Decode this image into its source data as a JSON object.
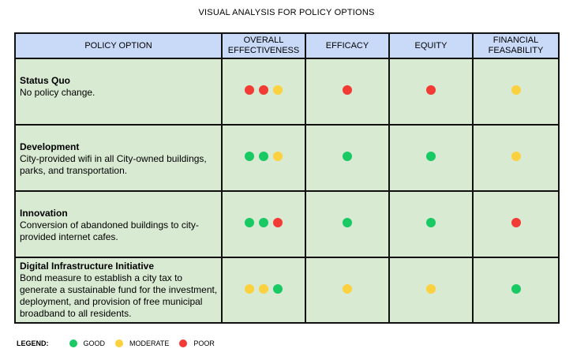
{
  "title": "VISUAL ANALYSIS FOR POLICY OPTIONS",
  "columns": [
    "POLICY OPTION",
    "OVERALL\nEFFECTIVENESS",
    "EFFICACY",
    "EQUITY",
    "FINANCIAL\nFEASABILITY"
  ],
  "colors": {
    "good": "#18c964",
    "moderate": "#fbd13f",
    "poor": "#f23b35",
    "header_bg": "#c9daf8",
    "row_bg": "#d9ead3"
  },
  "rows": [
    {
      "name": "Status Quo",
      "description": "No policy change.",
      "overall": [
        "poor",
        "poor",
        "moderate"
      ],
      "efficacy": [
        "poor"
      ],
      "equity": [
        "poor"
      ],
      "financial": [
        "moderate"
      ]
    },
    {
      "name": "Development",
      "description": "City-provided wifi in all City-owned buildings, parks, and transportation.",
      "overall": [
        "good",
        "good",
        "moderate"
      ],
      "efficacy": [
        "good"
      ],
      "equity": [
        "good"
      ],
      "financial": [
        "moderate"
      ]
    },
    {
      "name": "Innovation",
      "description": "Conversion of abandoned buildings to city-provided internet cafes.",
      "overall": [
        "good",
        "good",
        "poor"
      ],
      "efficacy": [
        "good"
      ],
      "equity": [
        "good"
      ],
      "financial": [
        "poor"
      ]
    },
    {
      "name": "Digital Infrastructure Initiative",
      "description": "Bond measure to establish a city tax to generate a sustainable fund for the investment, deployment, and provision of free municipal broadband to all residents.",
      "overall": [
        "moderate",
        "moderate",
        "good"
      ],
      "efficacy": [
        "moderate"
      ],
      "equity": [
        "moderate"
      ],
      "financial": [
        "good"
      ]
    }
  ],
  "legend": {
    "title": "LEGEND:",
    "items": [
      {
        "level": "good",
        "label": "GOOD"
      },
      {
        "level": "moderate",
        "label": "MODERATE"
      },
      {
        "level": "poor",
        "label": "POOR"
      }
    ]
  }
}
